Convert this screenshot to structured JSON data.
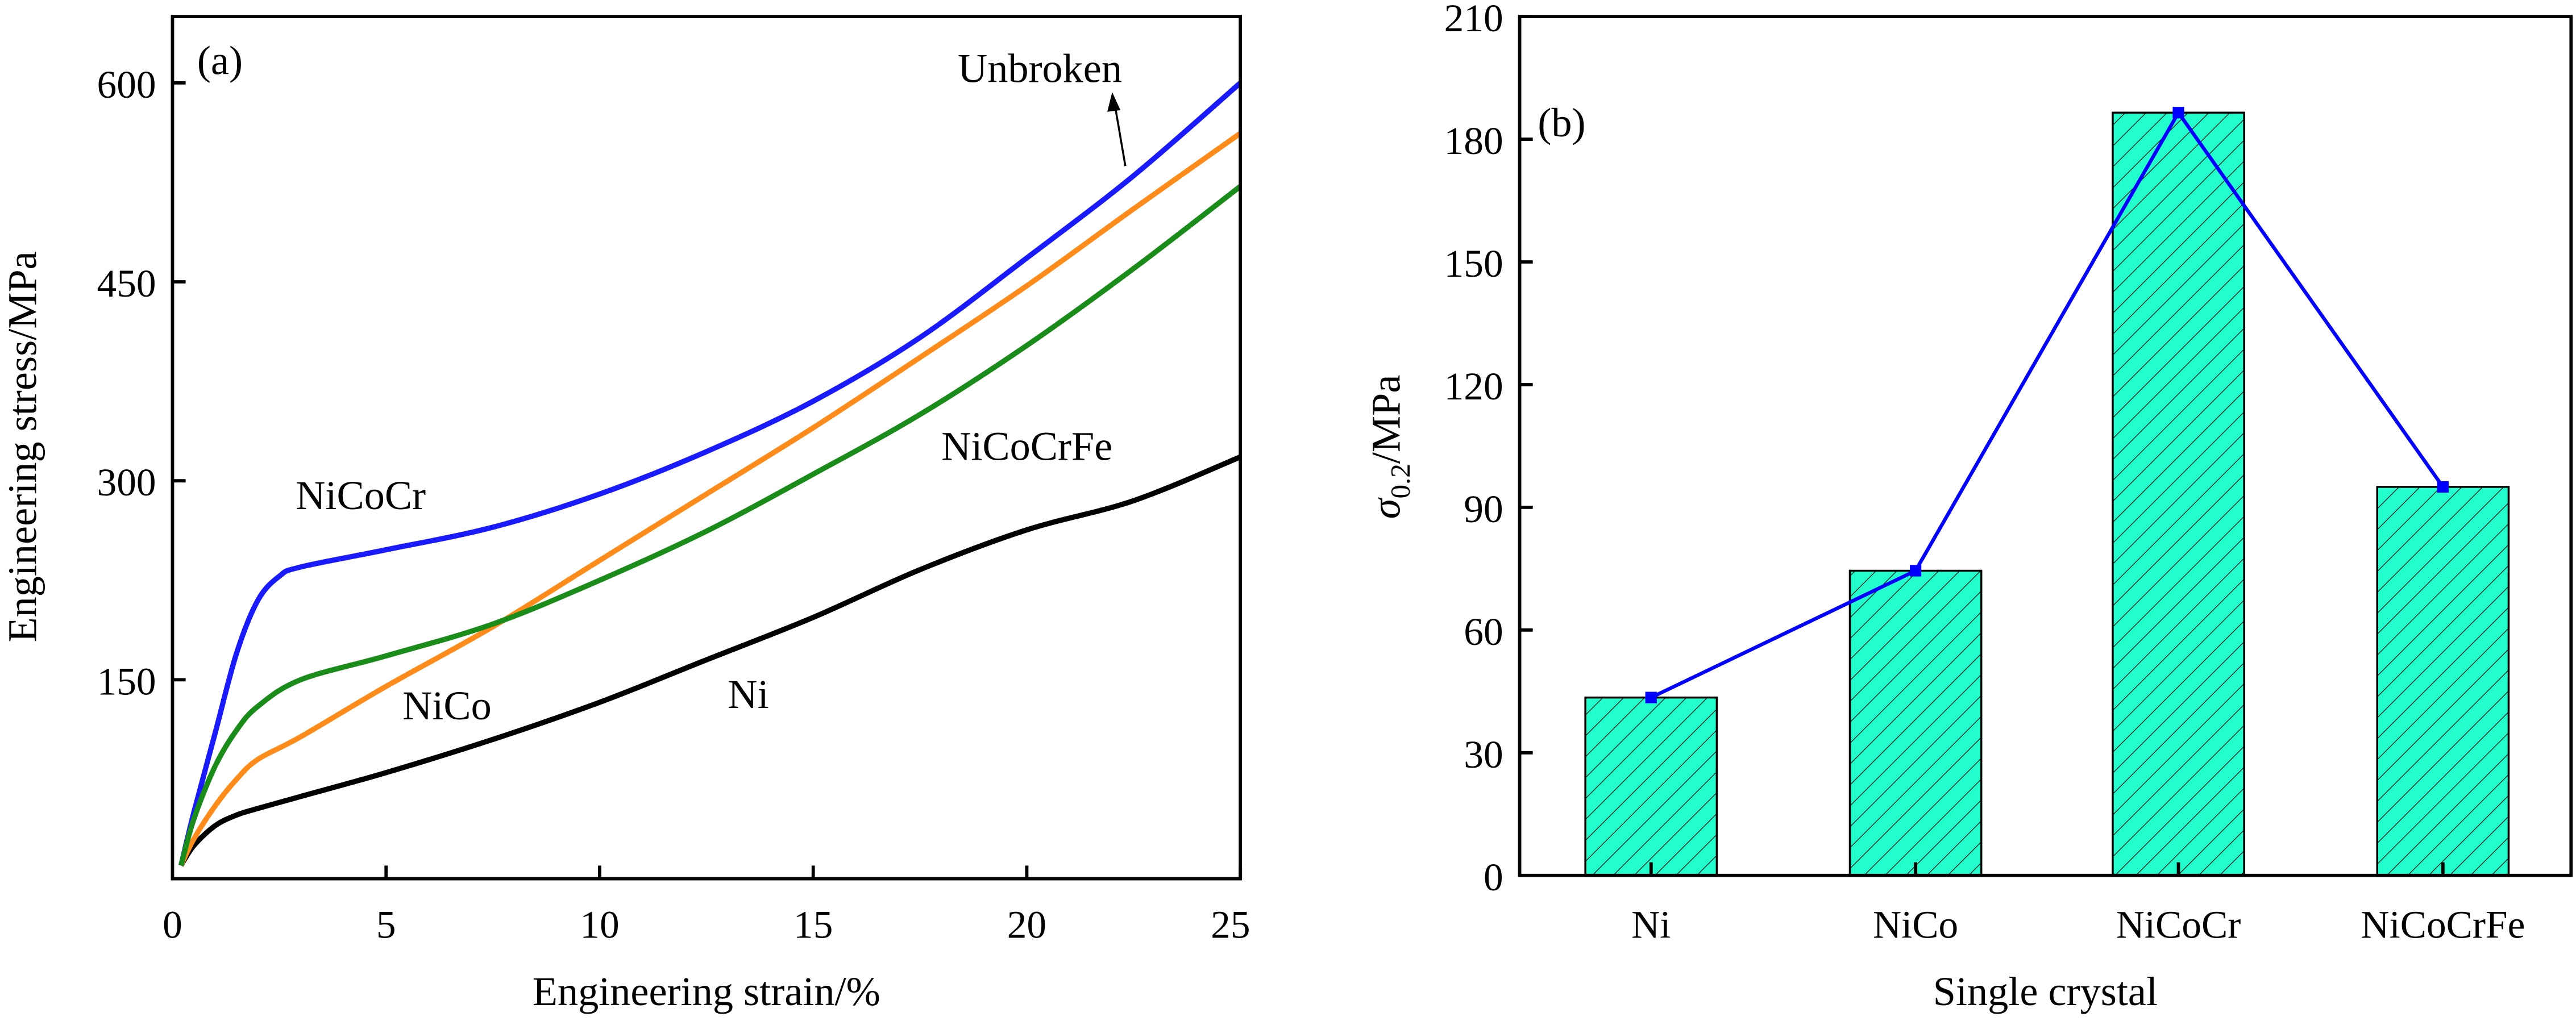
{
  "chart_data": [
    {
      "type": "line",
      "panel_label": "(a)",
      "xlabel": "Engineering strain/%",
      "ylabel": "Engineering stress/MPa",
      "xlim": [
        0,
        25
      ],
      "ylim": [
        0,
        650
      ],
      "xticks": [
        "0",
        "5",
        "10",
        "15",
        "20",
        "25"
      ],
      "xtick_values": [
        0,
        5,
        10,
        15,
        20,
        25
      ],
      "yticks": [
        "150",
        "300",
        "450",
        "600"
      ],
      "ytick_values": [
        150,
        300,
        450,
        600
      ],
      "grid": false,
      "annotation": "Unbroken",
      "series": [
        {
          "name": "Ni",
          "label": "Ni",
          "color": "#000000",
          "x": [
            0.2,
            0.5,
            1,
            1.5,
            2,
            3,
            5,
            7.5,
            10,
            12.5,
            15,
            17.5,
            20,
            22.5,
            25
          ],
          "y": [
            10,
            25,
            40,
            48,
            53,
            62,
            80,
            105,
            133,
            165,
            197,
            233,
            263,
            285,
            318
          ]
        },
        {
          "name": "NiCo",
          "label": "NiCo",
          "color": "#ff8c1a",
          "x": [
            0.2,
            0.5,
            1,
            1.5,
            2,
            3,
            5,
            7.5,
            10,
            12.5,
            15,
            17.5,
            20,
            22.5,
            25
          ],
          "y": [
            10,
            30,
            55,
            75,
            90,
            107,
            145,
            190,
            240,
            290,
            340,
            393,
            447,
            505,
            562
          ]
        },
        {
          "name": "NiCoCr",
          "label": "NiCoCr",
          "color": "#1a1aff",
          "x": [
            0.2,
            0.5,
            1,
            1.5,
            2,
            2.5,
            3,
            5,
            7.5,
            10,
            12.5,
            15,
            17.5,
            20,
            22.5,
            25
          ],
          "y": [
            10,
            50,
            110,
            170,
            210,
            228,
            235,
            248,
            265,
            290,
            322,
            360,
            408,
            468,
            530,
            600
          ]
        },
        {
          "name": "NiCoCrFe",
          "label": "NiCoCrFe",
          "color": "#1a8c1a",
          "x": [
            0.2,
            0.5,
            1,
            1.5,
            2,
            3,
            5,
            7.5,
            10,
            12.5,
            15,
            17.5,
            20,
            22.5,
            25
          ],
          "y": [
            10,
            45,
            85,
            112,
            130,
            150,
            168,
            192,
            225,
            262,
            305,
            350,
            402,
            460,
            522
          ]
        }
      ]
    },
    {
      "type": "bar",
      "panel_label": "(b)",
      "xlabel": "Single crystal",
      "ylabel_symbol": "σ",
      "ylabel_sub": "0.2",
      "ylabel_unit": "/MPa",
      "categories": [
        "Ni",
        "NiCo",
        "NiCoCr",
        "NiCoCrFe"
      ],
      "values": [
        43.5,
        74.5,
        186.5,
        95
      ],
      "ylim": [
        0,
        210
      ],
      "yticks": [
        "0",
        "30",
        "60",
        "90",
        "120",
        "150",
        "180",
        "210"
      ],
      "ytick_values": [
        0,
        30,
        60,
        90,
        120,
        150,
        180,
        210
      ],
      "bar_color": "#22ffcc",
      "line_color": "#0000ff",
      "grid": false
    }
  ]
}
